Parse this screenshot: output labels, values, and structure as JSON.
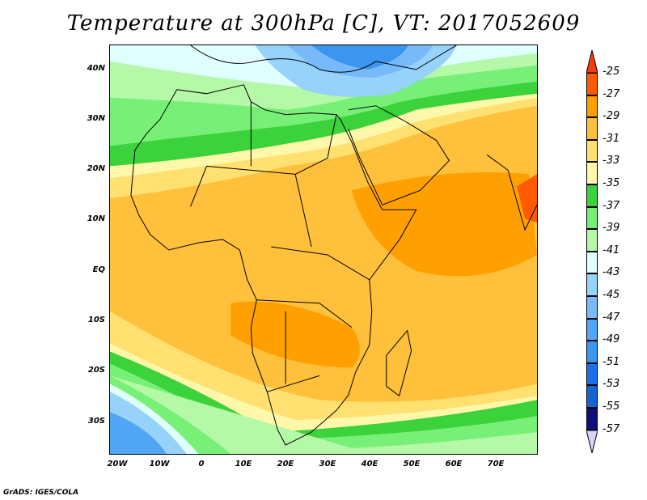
{
  "title": "Temperature at 300hPa [C], VT: 2017052609",
  "credit": "GrADS: IGES/COLA",
  "lat_labels": [
    "40N",
    "30N",
    "20N",
    "10N",
    "EQ",
    "10S",
    "20S",
    "30S"
  ],
  "lat_values": [
    40,
    30,
    20,
    10,
    0,
    -10,
    -20,
    -30
  ],
  "lon_labels": [
    "20W",
    "10W",
    "0",
    "10E",
    "20E",
    "30E",
    "40E",
    "50E",
    "60E",
    "70E"
  ],
  "lon_values": [
    -20,
    -10,
    0,
    10,
    20,
    30,
    40,
    50,
    60,
    70
  ],
  "colorbar": {
    "labels": [
      "-25",
      "-27",
      "-29",
      "-31",
      "-33",
      "-35",
      "-37",
      "-39",
      "-41",
      "-43",
      "-45",
      "-47",
      "-49",
      "-51",
      "-53",
      "-55",
      "-57"
    ],
    "colors": [
      "#FF5A00",
      "#FFA000",
      "#FFC03C",
      "#FFE070",
      "#FFF8AA",
      "#3CD23C",
      "#78F078",
      "#B4F8A8",
      "#E0FFFF",
      "#96D2FA",
      "#78B9FA",
      "#50A5F5",
      "#3C96F0",
      "#1E6EEB",
      "#1464D2",
      "#0F0F78"
    ],
    "top_arrow_color": "#FA3C0A",
    "bottom_arrow_color": "#D4D4FA"
  }
}
